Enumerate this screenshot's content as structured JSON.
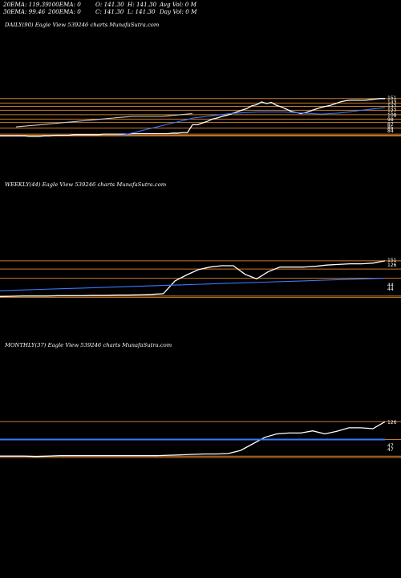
{
  "header": {
    "row1": [
      "20EMA: 119.39",
      "100EMA: 0",
      "O: 141.30",
      "H: 141.30",
      "Avg Vol: 0  M"
    ],
    "row2": [
      "30EMA: 99.46",
      "200EMA: 0",
      "C: 141.30",
      "L: 141.30",
      "Day Vol: 0  M"
    ]
  },
  "colors": {
    "background": "#000000",
    "price": "#ffffff",
    "ema": "#3a78ff",
    "level": "#c87a2a"
  },
  "chart_data": [
    {
      "type": "line",
      "title": "DAILY(90) Eagle  View  539246  charts MunafaSutra.com",
      "tick_labels": [
        "151",
        "143",
        "137",
        "127",
        "108",
        "98",
        "87",
        "85",
        "84"
      ],
      "series": [
        {
          "values": [
            84,
            84,
            84,
            84,
            84,
            84,
            83,
            83,
            83,
            84,
            84,
            85,
            85,
            85,
            85,
            86,
            86,
            86,
            86,
            86,
            86,
            87,
            87,
            87,
            87,
            87,
            87,
            88,
            88,
            88,
            88,
            88,
            88,
            88,
            88,
            89,
            89,
            90,
            90,
            104,
            104,
            107,
            110,
            114,
            116,
            119,
            121,
            124,
            127,
            130,
            133,
            138,
            140,
            145,
            142,
            144,
            139,
            136,
            132,
            128,
            126,
            124,
            126,
            129,
            132,
            135,
            137,
            139,
            142,
            145,
            147,
            148,
            148,
            148,
            148,
            149,
            150,
            151,
            151
          ]
        },
        {
          "values": [
            84,
            88,
            92,
            96,
            100,
            104,
            108,
            112,
            116,
            118,
            120,
            122,
            124,
            125,
            126,
            127,
            127,
            127,
            127,
            126,
            125,
            124,
            123,
            124,
            125,
            127,
            129,
            131,
            133,
            135
          ]
        },
        {
          "values": [
            100,
            101,
            102,
            103,
            104,
            105,
            106,
            107,
            108,
            109,
            110,
            111,
            112,
            113,
            114,
            115,
            116,
            117,
            118,
            119,
            119,
            119,
            119,
            119,
            119,
            120,
            121,
            122,
            123,
            124
          ]
        }
      ],
      "levels": [
        151,
        143,
        137,
        130,
        122,
        114,
        108,
        98,
        87,
        85,
        84
      ]
    },
    {
      "type": "line",
      "title": "WEEKLY(44) Eagle  View  539246  charts MunafaSutra.com",
      "tick_labels": [
        "151",
        "126",
        "44",
        "44"
      ],
      "series": [
        {
          "values": [
            42,
            43,
            44,
            44,
            44,
            45,
            45,
            45,
            46,
            46,
            47,
            47,
            48,
            49,
            51,
            90,
            108,
            124,
            132,
            136,
            136,
            110,
            96,
            118,
            132,
            132,
            132,
            134,
            138,
            140,
            142,
            142,
            144,
            151
          ]
        },
        {
          "values": [
            60,
            62,
            64,
            66,
            68,
            70,
            72,
            74,
            76,
            78,
            80,
            82,
            84,
            86,
            88,
            90,
            92,
            94,
            96,
            98
          ]
        }
      ],
      "levels": [
        151,
        126,
        98,
        44,
        40
      ]
    },
    {
      "type": "line",
      "title": "MONTHLY(37) Eagle  View  539246  charts MunafaSutra.com",
      "tick_labels": [
        "126",
        "47",
        "47"
      ],
      "series": [
        {
          "values": [
            47,
            47,
            47,
            46,
            47,
            48,
            48,
            48,
            48,
            48,
            48,
            48,
            48,
            48,
            49,
            50,
            51,
            52,
            52,
            53,
            60,
            75,
            90,
            98,
            100,
            100,
            105,
            98,
            104,
            112,
            112,
            110,
            126
          ]
        },
        {
          "values": [
            85,
            85,
            85,
            85,
            85,
            85,
            85,
            85,
            85,
            85,
            85,
            85,
            85,
            85
          ]
        }
      ],
      "levels": [
        126,
        85,
        47,
        44
      ]
    }
  ]
}
